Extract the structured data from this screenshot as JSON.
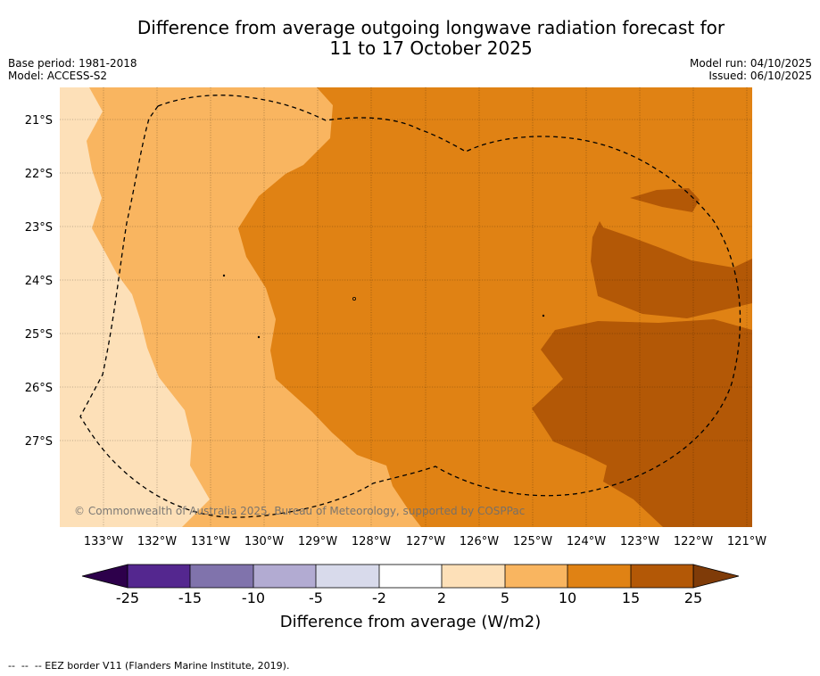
{
  "title": {
    "line1": "Difference from average outgoing longwave radiation forecast for",
    "line2": "11 to 17 October 2025"
  },
  "meta": {
    "base_period": "Base period: 1981-2018",
    "model": "Model: ACCESS-S2",
    "model_run": "Model run: 04/10/2025",
    "issued": "Issued: 06/10/2025"
  },
  "map": {
    "lat_labels": [
      "21°S",
      "22°S",
      "23°S",
      "24°S",
      "25°S",
      "26°S",
      "27°S"
    ],
    "lon_labels": [
      "133°W",
      "132°W",
      "131°W",
      "130°W",
      "129°W",
      "128°W",
      "127°W",
      "126°W",
      "125°W",
      "124°W",
      "123°W",
      "122°W",
      "121°W"
    ],
    "copyright": "© Commonwealth of Australia 2025, Bureau of Meteorology, supported by COSPPac",
    "colors": {
      "c2_5": "#fde0b8",
      "c5_10": "#f9b560",
      "c10_15": "#e08214",
      "c15_25": "#b35806"
    }
  },
  "colorbar": {
    "tick_labels": [
      "-25",
      "-15",
      "-10",
      "-5",
      "-2",
      "2",
      "5",
      "10",
      "15",
      "25"
    ],
    "segment_colors": [
      "#54278f",
      "#8073ac",
      "#b2abd2",
      "#d8daeb",
      "#ffffff",
      "#fde0b8",
      "#f9b560",
      "#e08214",
      "#b35806"
    ],
    "under_color": "#2d004b",
    "over_color": "#7f3b08",
    "label": "Difference from average (W/m2)"
  },
  "footer": {
    "legend": "--  --  -- EEZ border V11 (Flanders Marine Institute, 2019)."
  }
}
